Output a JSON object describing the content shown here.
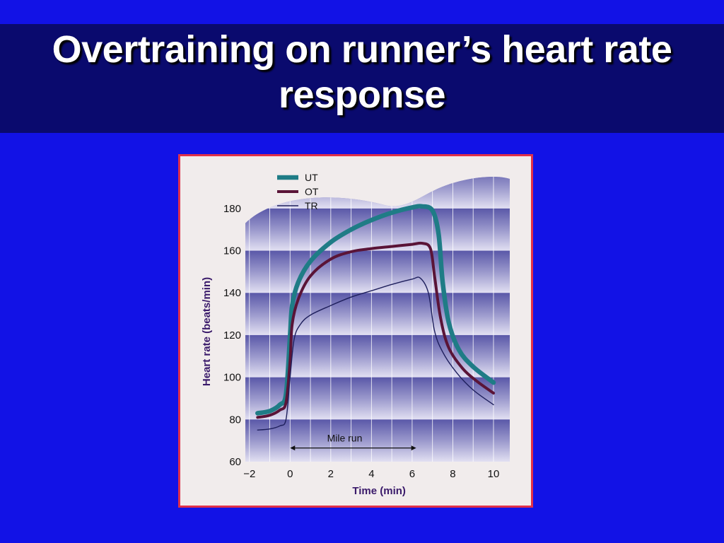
{
  "slide": {
    "title_line1": "Overtraining on runner’s heart rate",
    "title_line2": "response"
  },
  "colors": {
    "background": "#1212e6",
    "title_band": "#0a0a6e",
    "frame_border": "#e0304a",
    "UT": "#1f7c86",
    "OT": "#5a1437",
    "TR": "#1e1f5c"
  },
  "chart_data": {
    "type": "line",
    "title": "",
    "xlabel": "Time (min)",
    "ylabel": "Heart rate (beats/min)",
    "xlim": [
      -2.2,
      10.8
    ],
    "ylim": [
      60,
      190
    ],
    "x_ticks": [
      -2,
      0,
      2,
      4,
      6,
      8,
      10
    ],
    "x_tick_labels": [
      "−2",
      "0",
      "2",
      "4",
      "6",
      "8",
      "10"
    ],
    "y_ticks": [
      60,
      80,
      100,
      120,
      140,
      160,
      180
    ],
    "y_tick_labels": [
      "60",
      "80",
      "100",
      "120",
      "140",
      "160",
      "180"
    ],
    "grid": true,
    "legend_position": "top-left",
    "annotation": {
      "label": "Mile run",
      "from": 0,
      "to": 6.2
    },
    "series": [
      {
        "name": "UT",
        "color_key": "UT",
        "points": [
          [
            -1.6,
            83
          ],
          [
            -1,
            84
          ],
          [
            -0.5,
            87
          ],
          [
            -0.2,
            92
          ],
          [
            0,
            120
          ],
          [
            0.1,
            134
          ],
          [
            0.4,
            145
          ],
          [
            1,
            155
          ],
          [
            2,
            164
          ],
          [
            3,
            170
          ],
          [
            4,
            174.5
          ],
          [
            5,
            178
          ],
          [
            6,
            180.5
          ],
          [
            6.5,
            181
          ],
          [
            7,
            179
          ],
          [
            7.3,
            168
          ],
          [
            7.5,
            145
          ],
          [
            7.8,
            126
          ],
          [
            8.3,
            113
          ],
          [
            9,
            105
          ],
          [
            10,
            97.5
          ]
        ]
      },
      {
        "name": "OT",
        "color_key": "OT",
        "points": [
          [
            -1.6,
            81
          ],
          [
            -1,
            82
          ],
          [
            -0.5,
            84.5
          ],
          [
            -0.2,
            88
          ],
          [
            0,
            108
          ],
          [
            0.1,
            125
          ],
          [
            0.4,
            137
          ],
          [
            1,
            148
          ],
          [
            2,
            156
          ],
          [
            3,
            159.5
          ],
          [
            4,
            161
          ],
          [
            5,
            162
          ],
          [
            6,
            163
          ],
          [
            6.5,
            163.5
          ],
          [
            6.9,
            161
          ],
          [
            7.1,
            148
          ],
          [
            7.4,
            128
          ],
          [
            7.8,
            114
          ],
          [
            8.5,
            104
          ],
          [
            9.2,
            98
          ],
          [
            10,
            92.5
          ]
        ]
      },
      {
        "name": "TR",
        "color_key": "TR",
        "points": [
          [
            -1.6,
            75
          ],
          [
            -1,
            75.5
          ],
          [
            -0.5,
            77
          ],
          [
            -0.2,
            80
          ],
          [
            0,
            100
          ],
          [
            0.2,
            118
          ],
          [
            0.5,
            125
          ],
          [
            1,
            129.5
          ],
          [
            2,
            134
          ],
          [
            3,
            138
          ],
          [
            4,
            141
          ],
          [
            5,
            144
          ],
          [
            6,
            146.5
          ],
          [
            6.4,
            147
          ],
          [
            6.8,
            140
          ],
          [
            7.1,
            122
          ],
          [
            7.5,
            112
          ],
          [
            8.2,
            102
          ],
          [
            9,
            94
          ],
          [
            10,
            87
          ]
        ]
      }
    ]
  }
}
